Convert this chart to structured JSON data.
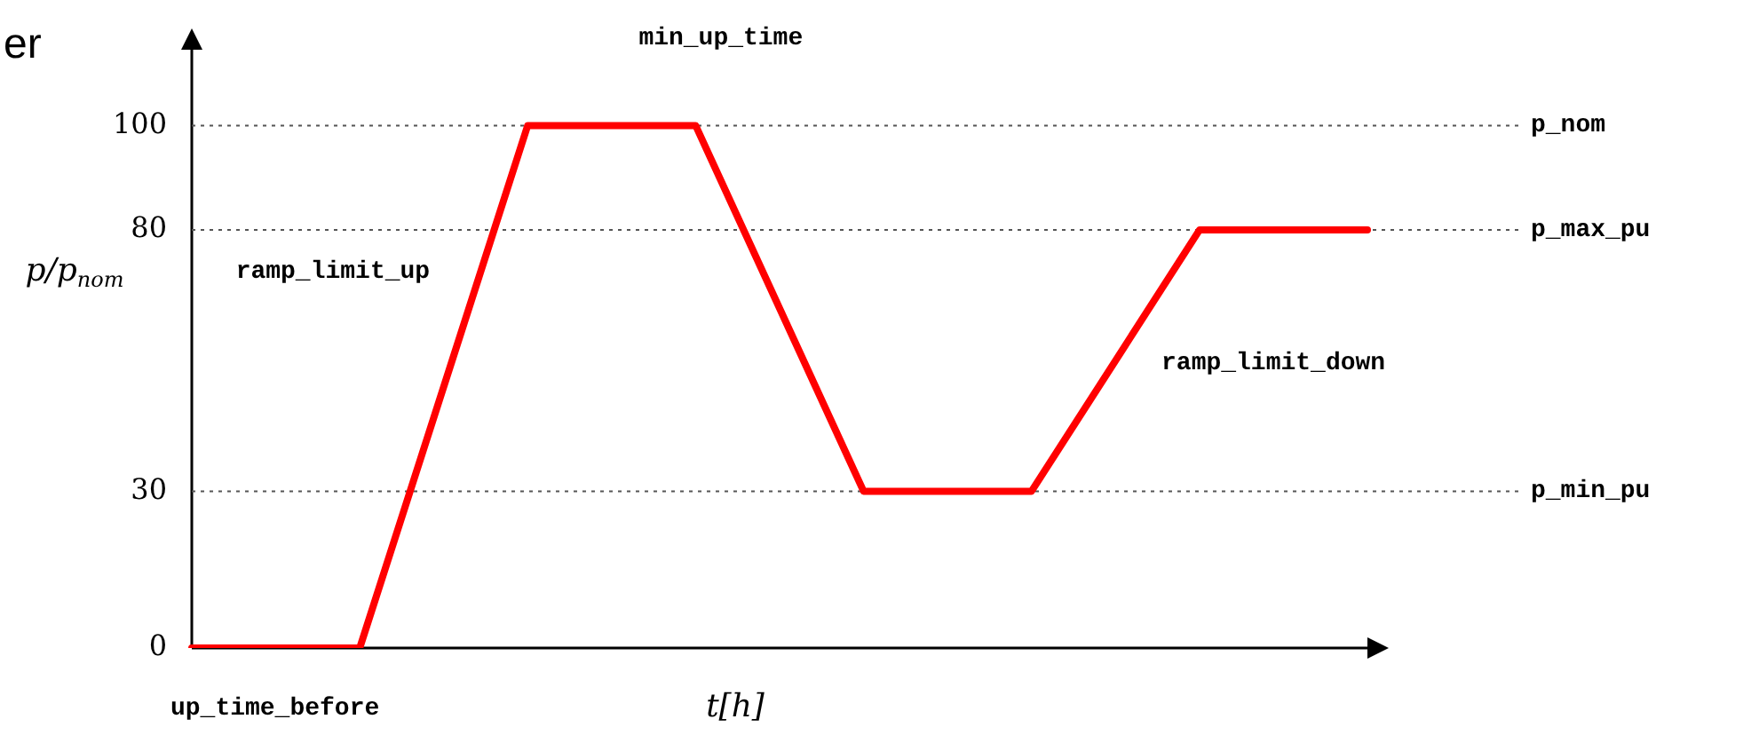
{
  "chart_data": {
    "type": "line",
    "xlabel": "t[h]",
    "ylabel": "p/p$_{nom}$",
    "categories": [
      null,
      null,
      null,
      null,
      null,
      null,
      null,
      null
    ],
    "series": [
      {
        "color": "#ff0000",
        "values": [
          0,
          0,
          100,
          100,
          30,
          30,
          80,
          80
        ]
      }
    ],
    "ylim": [
      0,
      116
    ],
    "yticks": [
      0,
      30,
      80,
      100
    ],
    "tick_labels": "y",
    "grid": false,
    "legend": false,
    "marker": "none",
    "line_style": "solid",
    "ref_lines": [
      {
        "axis": "y",
        "value": 100,
        "label": "p_nom",
        "line_style": "dotted"
      },
      {
        "axis": "y",
        "value": 80,
        "label": "p_max_pu",
        "line_style": "dotted"
      },
      {
        "axis": "y",
        "value": 30,
        "label": "p_min_pu",
        "line_style": "dotted"
      }
    ],
    "annotations": [
      "er",
      "up_time_before",
      "min_up_time",
      "ramp_limit_up",
      "ramp_limit_down"
    ]
  }
}
